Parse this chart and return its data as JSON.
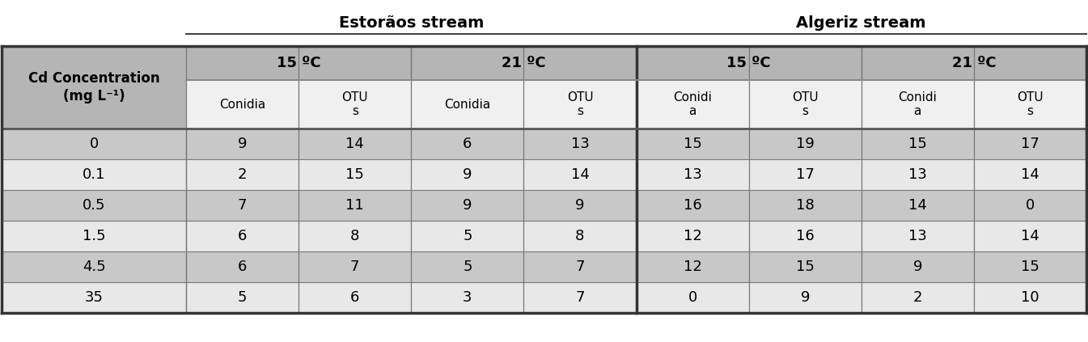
{
  "title_left_special": "Estorãos stream",
  "title_right": "Algeriz stream",
  "row_header_line1": "Cd Concentration",
  "row_header_line2": "(mg L⁻¹)",
  "temp_headers": [
    "15 ºC",
    "21 ºC",
    "15 ºC",
    "21 ºC"
  ],
  "col_headers_row2": [
    "Conidia",
    "OTU\ns",
    "Conidia",
    "OTU\ns",
    "Conidi\na",
    "OTU\ns",
    "Conidi\na",
    "OTU\ns"
  ],
  "cd_concentrations": [
    "0",
    "0.1",
    "0.5",
    "1.5",
    "4.5",
    "35"
  ],
  "data": [
    [
      9,
      14,
      6,
      13,
      15,
      19,
      15,
      17
    ],
    [
      2,
      15,
      9,
      14,
      13,
      17,
      13,
      14
    ],
    [
      7,
      11,
      9,
      9,
      16,
      18,
      14,
      0
    ],
    [
      6,
      8,
      5,
      8,
      12,
      16,
      13,
      14
    ],
    [
      6,
      7,
      5,
      7,
      12,
      15,
      9,
      15
    ],
    [
      5,
      6,
      3,
      7,
      0,
      9,
      2,
      10
    ]
  ],
  "bg_header": "#b5b5b5",
  "bg_row_dark": "#c8c8c8",
  "bg_row_light": "#e8e8e8",
  "bg_white_col": "#f0f0f0",
  "bg_white": "#ffffff",
  "text_color": "#000000"
}
